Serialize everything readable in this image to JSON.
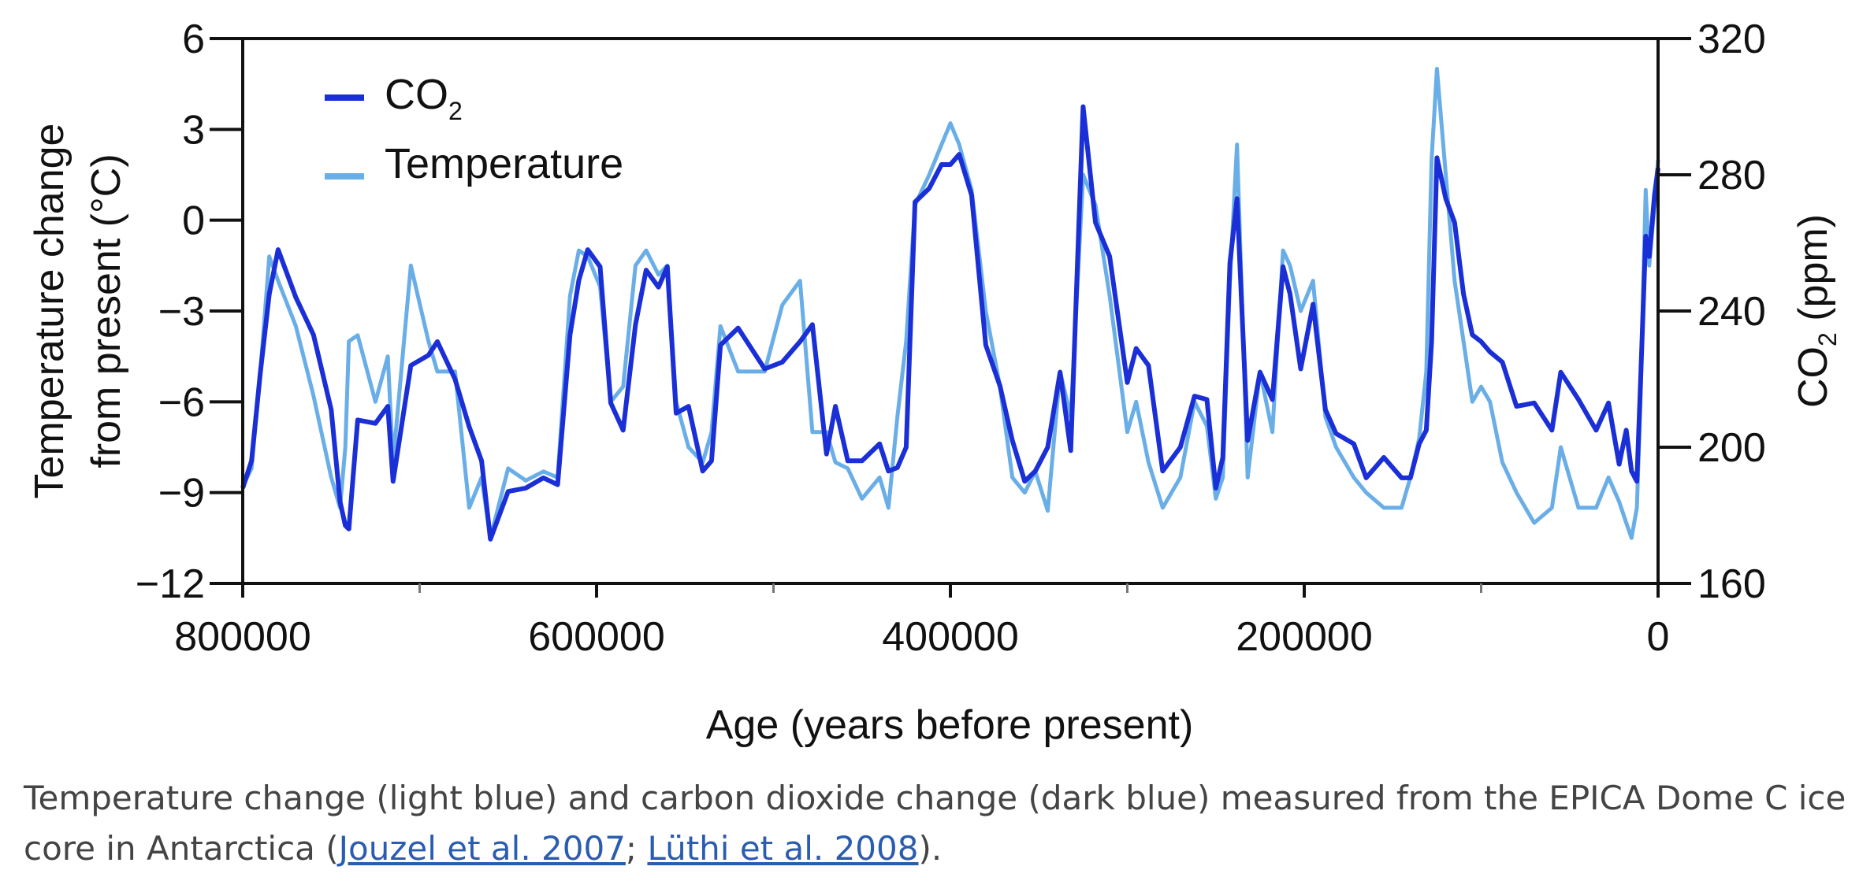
{
  "chart_data": {
    "type": "line",
    "xlabel": "Age (years before present)",
    "ylabel_left_line1": "Temperature change",
    "ylabel_left_line2": "from present (°C)",
    "ylabel_right_prefix": "CO",
    "ylabel_right_sub": "2",
    "ylabel_right_suffix": " (ppm)",
    "xlim": [
      800000,
      0
    ],
    "ylim_left": [
      -12,
      6
    ],
    "ylim_right": [
      160,
      320
    ],
    "x_ticks": [
      800000,
      600000,
      400000,
      200000,
      0
    ],
    "x_minor_ticks": [
      700000,
      500000,
      300000,
      100000
    ],
    "y_left_ticks": [
      "6",
      "3",
      "0",
      "−3",
      "−6",
      "−9",
      "−12"
    ],
    "y_left_tick_values": [
      6,
      3,
      0,
      -3,
      -6,
      -9,
      -12
    ],
    "y_right_ticks": [
      320,
      280,
      240,
      200,
      160
    ],
    "grid": false,
    "legend_position": "top-left",
    "series": [
      {
        "name_prefix": "CO",
        "name_sub": "2",
        "axis": "right",
        "color": "#1a2fd6",
        "x": [
          800000,
          795000,
          790000,
          785000,
          780000,
          770000,
          760000,
          750000,
          745000,
          742000,
          740000,
          735000,
          725000,
          718000,
          715000,
          705000,
          695000,
          690000,
          680000,
          672000,
          665000,
          660000,
          650000,
          640000,
          630000,
          622000,
          615000,
          610000,
          605000,
          598000,
          592000,
          585000,
          578000,
          572000,
          565000,
          560000,
          555000,
          548000,
          540000,
          535000,
          530000,
          520000,
          505000,
          495000,
          485000,
          478000,
          470000,
          465000,
          458000,
          450000,
          440000,
          435000,
          430000,
          425000,
          420000,
          412000,
          405000,
          400000,
          395000,
          388000,
          380000,
          372000,
          365000,
          358000,
          352000,
          345000,
          338000,
          332000,
          325000,
          318000,
          310000,
          300000,
          295000,
          288000,
          280000,
          270000,
          262000,
          255000,
          250000,
          246000,
          242000,
          238000,
          232000,
          225000,
          218000,
          212000,
          208000,
          202000,
          195000,
          188000,
          182000,
          172000,
          165000,
          155000,
          145000,
          140000,
          135000,
          131000,
          128000,
          125000,
          120000,
          115000,
          110000,
          105000,
          100000,
          95000,
          88000,
          80000,
          70000,
          60000,
          55000,
          45000,
          35000,
          28000,
          22000,
          18000,
          15000,
          12000,
          10000,
          7000,
          5000,
          2000,
          0
        ],
        "y": [
          188,
          196,
          222,
          245,
          258,
          244,
          233,
          211,
          184,
          177,
          176,
          208,
          207,
          212,
          190,
          224,
          227,
          231,
          220,
          206,
          196,
          173,
          187,
          188,
          191,
          189,
          233,
          249,
          258,
          253,
          213,
          205,
          236,
          252,
          247,
          253,
          210,
          212,
          193,
          196,
          230,
          235,
          223,
          225,
          231,
          236,
          198,
          212,
          196,
          196,
          201,
          193,
          194,
          200,
          272,
          276,
          283,
          283,
          286,
          274,
          230,
          218,
          202,
          190,
          193,
          200,
          222,
          199,
          300,
          266,
          256,
          219,
          229,
          224,
          193,
          200,
          215,
          214,
          188,
          197,
          254,
          273,
          202,
          222,
          214,
          253,
          245,
          223,
          242,
          211,
          204,
          201,
          191,
          197,
          191,
          191,
          201,
          205,
          231,
          285,
          273,
          266,
          245,
          233,
          231,
          228,
          225,
          212,
          213,
          205,
          222,
          214,
          205,
          213,
          195,
          205,
          193,
          190,
          218,
          262,
          256,
          274,
          282
        ]
      },
      {
        "name": "Temperature",
        "axis": "left",
        "color": "#6aaee8",
        "x": [
          800000,
          795000,
          790000,
          785000,
          780000,
          770000,
          760000,
          750000,
          745000,
          742000,
          740000,
          735000,
          725000,
          718000,
          715000,
          705000,
          695000,
          690000,
          680000,
          672000,
          665000,
          660000,
          650000,
          640000,
          630000,
          622000,
          615000,
          610000,
          605000,
          598000,
          592000,
          585000,
          578000,
          572000,
          565000,
          560000,
          555000,
          548000,
          540000,
          535000,
          530000,
          520000,
          505000,
          495000,
          485000,
          478000,
          470000,
          465000,
          458000,
          450000,
          440000,
          435000,
          430000,
          425000,
          420000,
          412000,
          405000,
          400000,
          395000,
          388000,
          380000,
          372000,
          365000,
          358000,
          352000,
          345000,
          338000,
          332000,
          325000,
          318000,
          310000,
          300000,
          295000,
          288000,
          280000,
          270000,
          262000,
          255000,
          250000,
          246000,
          242000,
          238000,
          232000,
          225000,
          218000,
          212000,
          208000,
          202000,
          195000,
          188000,
          182000,
          172000,
          165000,
          155000,
          145000,
          140000,
          135000,
          131000,
          128000,
          125000,
          120000,
          115000,
          110000,
          105000,
          100000,
          95000,
          88000,
          80000,
          70000,
          60000,
          55000,
          45000,
          35000,
          28000,
          22000,
          18000,
          15000,
          12000,
          10000,
          7000,
          5000,
          2000,
          0
        ],
        "y": [
          -8.8,
          -8.2,
          -5,
          -1.2,
          -2,
          -3.5,
          -5.8,
          -8.5,
          -9.5,
          -7.5,
          -4,
          -3.8,
          -6,
          -4.5,
          -8,
          -1.5,
          -4,
          -5,
          -5,
          -9.5,
          -8.5,
          -10.5,
          -8.2,
          -8.6,
          -8.3,
          -8.5,
          -2.5,
          -1,
          -1.2,
          -2.2,
          -6,
          -5.5,
          -1.5,
          -1,
          -1.8,
          -1.5,
          -6,
          -7.5,
          -8,
          -7,
          -3.5,
          -5,
          -5,
          -2.8,
          -2,
          -7,
          -7,
          -8,
          -8.2,
          -9.2,
          -8.5,
          -9.5,
          -6.5,
          -4,
          0.5,
          1.5,
          2.5,
          3.2,
          2.5,
          1,
          -3,
          -5.5,
          -8.5,
          -9,
          -8.3,
          -9.6,
          -5,
          -6.5,
          1.5,
          0.5,
          -2.5,
          -7,
          -6,
          -8,
          -9.5,
          -8.5,
          -6,
          -6.8,
          -9.2,
          -8.5,
          -2,
          2.5,
          -8.5,
          -5,
          -7,
          -1,
          -1.5,
          -3,
          -2,
          -6.5,
          -7.5,
          -8.5,
          -9,
          -9.5,
          -9.5,
          -8.5,
          -7.2,
          -5,
          2,
          5,
          1.5,
          -2,
          -4,
          -6,
          -5.5,
          -6,
          -8,
          -9,
          -10,
          -9.5,
          -7.5,
          -9.5,
          -9.5,
          -8.5,
          -9.3,
          -10,
          -10.5,
          -9.5,
          -6,
          1,
          -1.5,
          0.5,
          2
        ]
      }
    ]
  },
  "caption": {
    "text_before": "Temperature change (light blue) and carbon dioxide change (dark blue) measured from the EPICA Dome C ice core in Antarctica (",
    "link1": "Jouzel et al. 2007",
    "separator": "; ",
    "link2": "Lüthi et al. 2008",
    "text_after": ")."
  }
}
